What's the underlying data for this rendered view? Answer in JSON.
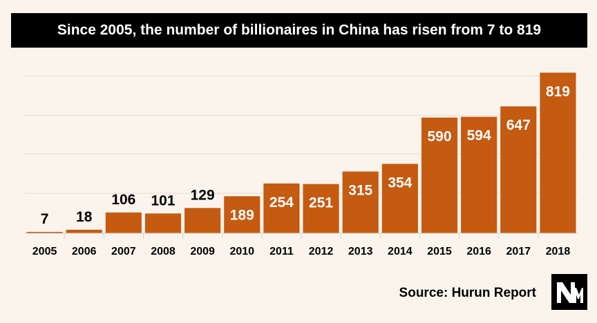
{
  "title": "Since 2005, the number of billionaires in China has risen from 7 to 819",
  "source": "Source: Hurun Report",
  "logo_text": "NM",
  "colors": {
    "background": "#fbf4ec",
    "bar": "#c55a11",
    "title_bg": "#000000",
    "gridline": "#e6ddd3"
  },
  "chart_data": {
    "type": "bar",
    "title": "Since 2005, the number of billionaires in China has risen from 7 to 819",
    "xlabel": "",
    "ylabel": "",
    "categories": [
      "2005",
      "2006",
      "2007",
      "2008",
      "2009",
      "2010",
      "2011",
      "2012",
      "2013",
      "2014",
      "2015",
      "2016",
      "2017",
      "2018"
    ],
    "values": [
      7,
      18,
      106,
      101,
      129,
      189,
      254,
      251,
      315,
      354,
      590,
      594,
      647,
      819
    ],
    "ylim": [
      0,
      820
    ],
    "grid": true,
    "legend": "none"
  }
}
